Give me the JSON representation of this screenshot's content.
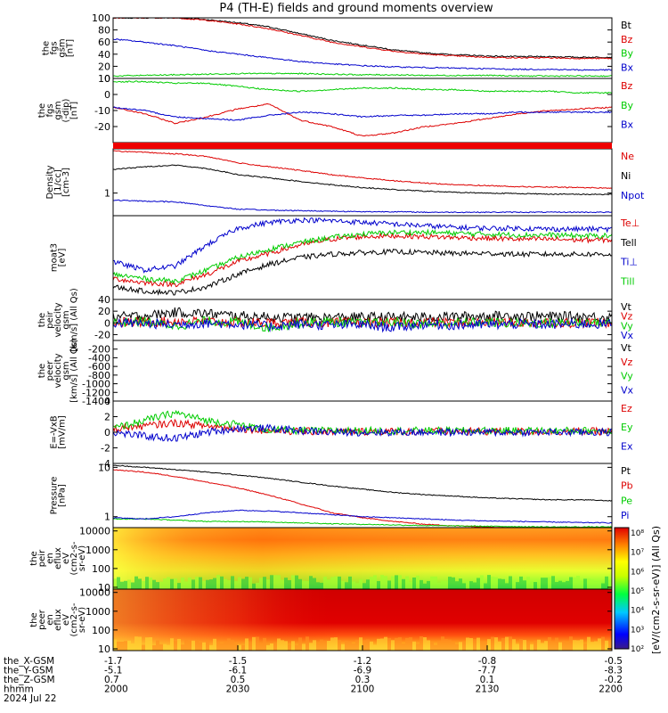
{
  "title": "P4 (TH-E) fields and ground moments overview",
  "colors": {
    "black": "#000000",
    "red": "#dd0000",
    "green": "#00cc00",
    "blue": "#0000cc"
  },
  "colorbar_labels": [
    "10⁸",
    "10⁷",
    "10⁶",
    "10⁵",
    "10⁴",
    "10³",
    "10²"
  ],
  "colorbar_title": "[eV/(cm2-s-sr-eV)] (All Qs)",
  "chart_data": [
    {
      "type": "line",
      "ylabel": [
        "the",
        "fgs",
        "gsm",
        "[nT]"
      ],
      "ylim": [
        0,
        100
      ],
      "yticks": [
        "100",
        "80",
        "60",
        "40",
        "20",
        "0"
      ],
      "series": [
        {
          "name": "Bt",
          "color": "black",
          "values": [
            100,
            100,
            100,
            97,
            92,
            85,
            74,
            63,
            55,
            47,
            42,
            39,
            37,
            36,
            36,
            35,
            35
          ]
        },
        {
          "name": "Bz",
          "color": "red",
          "values": [
            100,
            100,
            100,
            96,
            90,
            82,
            71,
            60,
            52,
            45,
            40,
            37,
            35,
            34,
            34,
            33,
            33
          ]
        },
        {
          "name": "By",
          "color": "green",
          "values": [
            4,
            5,
            6,
            7,
            8,
            8,
            8,
            7,
            6,
            6,
            5,
            5,
            5,
            4,
            4,
            4,
            4
          ]
        },
        {
          "name": "Bx",
          "color": "blue",
          "values": [
            65,
            60,
            54,
            46,
            40,
            34,
            28,
            24,
            21,
            19,
            18,
            17,
            16,
            15,
            15,
            14,
            14
          ]
        }
      ]
    },
    {
      "type": "line",
      "ylabel": [
        "the",
        "fgs",
        "gsm",
        "(-dip)",
        "[nT]"
      ],
      "ylim": [
        -30,
        10
      ],
      "yticks": [
        "10",
        "0",
        "-10",
        "-20"
      ],
      "series": [
        {
          "name": "Bz",
          "color": "red",
          "values": [
            -8,
            -12,
            -18,
            -14,
            -9,
            -6,
            -16,
            -20,
            -26,
            -24,
            -20,
            -18,
            -15,
            -12,
            -10,
            -9,
            -8
          ]
        },
        {
          "name": "By",
          "color": "green",
          "values": [
            8,
            8,
            7,
            7,
            5,
            3,
            2,
            3,
            4,
            4,
            3,
            3,
            2,
            2,
            2,
            1,
            1
          ]
        },
        {
          "name": "Bx",
          "color": "blue",
          "values": [
            -8,
            -10,
            -14,
            -15,
            -16,
            -13,
            -11,
            -12,
            -14,
            -13,
            -13,
            -12,
            -12,
            -11,
            -11,
            -11,
            -11
          ]
        }
      ]
    },
    {
      "type": "line",
      "ylabel": [
        "Density",
        "[1/cc]",
        "[cm-3]"
      ],
      "scale": "log",
      "ylim": [
        0.4,
        6
      ],
      "yticks": [
        "1"
      ],
      "series": [
        {
          "name": "Ne",
          "color": "red",
          "values": [
            5.5,
            5.2,
            4.9,
            4.4,
            3.4,
            2.9,
            2.5,
            2.1,
            1.85,
            1.65,
            1.5,
            1.4,
            1.35,
            1.3,
            1.27,
            1.25,
            1.22
          ]
        },
        {
          "name": "Ni",
          "color": "black",
          "values": [
            2.6,
            2.9,
            3.1,
            2.7,
            2.1,
            1.85,
            1.6,
            1.4,
            1.25,
            1.15,
            1.08,
            1.03,
            1.0,
            0.98,
            0.96,
            0.95,
            0.95
          ]
        },
        {
          "name": "Npot",
          "color": "blue",
          "values": [
            0.75,
            0.72,
            0.7,
            0.6,
            0.52,
            0.5,
            0.49,
            0.48,
            0.47,
            0.47,
            0.46,
            0.46,
            0.46,
            0.46,
            0.46,
            0.46,
            0.46
          ]
        }
      ]
    },
    {
      "type": "line",
      "ylabel": [
        "moat3",
        "[eV]"
      ],
      "ylim": [
        0,
        100
      ],
      "yticks": [],
      "series": [
        {
          "name": "Te⊥",
          "color": "red",
          "values": [
            25,
            20,
            18,
            30,
            45,
            55,
            65,
            72,
            75,
            76,
            75,
            74,
            73,
            72,
            72,
            71,
            71
          ]
        },
        {
          "name": "Tell",
          "color": "black",
          "values": [
            15,
            10,
            8,
            15,
            30,
            42,
            50,
            54,
            56,
            57,
            56,
            55,
            55,
            54,
            54,
            54,
            54
          ]
        },
        {
          "name": "Ti⊥",
          "color": "blue",
          "values": [
            45,
            35,
            40,
            65,
            85,
            92,
            95,
            94,
            92,
            90,
            88,
            86,
            85,
            85,
            84,
            84,
            84
          ]
        },
        {
          "name": "Till",
          "color": "green",
          "values": [
            30,
            25,
            22,
            35,
            50,
            60,
            68,
            74,
            78,
            80,
            80,
            79,
            78,
            77,
            77,
            76,
            76
          ]
        }
      ]
    },
    {
      "type": "line",
      "ylabel": [
        "the",
        "peir",
        "velocity",
        "gsm",
        "[km/s] (All Qs)"
      ],
      "ylim": [
        -30,
        40
      ],
      "yticks": [
        "40",
        "20",
        "0",
        "-20"
      ],
      "series": [
        {
          "name": "Vt",
          "color": "black",
          "values": [
            10,
            12,
            18,
            16,
            12,
            10,
            9,
            9,
            10,
            10,
            10,
            11,
            12,
            12,
            11,
            11,
            10
          ]
        },
        {
          "name": "Vz",
          "color": "red",
          "values": [
            2,
            1,
            3,
            2,
            1,
            0,
            1,
            0,
            1,
            0,
            1,
            0,
            1,
            0,
            1,
            0,
            0
          ]
        },
        {
          "name": "Vy",
          "color": "green",
          "values": [
            0,
            2,
            -5,
            3,
            1,
            -8,
            0,
            2,
            -1,
            1,
            -2,
            0,
            1,
            -1,
            0,
            1,
            0
          ]
        },
        {
          "name": "Vx",
          "color": "blue",
          "values": [
            0,
            -1,
            -3,
            0,
            -2,
            -6,
            -2,
            -4,
            -3,
            -8,
            -2,
            -4,
            -3,
            -2,
            -3,
            -2,
            -2
          ]
        }
      ]
    },
    {
      "type": "line",
      "ylabel": [
        "the",
        "peer",
        "velocity",
        "gsm",
        "[km/s] (All Qs)"
      ],
      "ylim": [
        -1400,
        0
      ],
      "yticks": [
        "-200",
        "-400",
        "-600",
        "-800",
        "-1000",
        "-1200",
        "-1400"
      ],
      "series": [
        {
          "name": "Vt",
          "color": "black",
          "values": []
        },
        {
          "name": "Vz",
          "color": "red",
          "values": []
        },
        {
          "name": "Vy",
          "color": "green",
          "values": []
        },
        {
          "name": "Vx",
          "color": "blue",
          "values": []
        }
      ]
    },
    {
      "type": "line",
      "ylabel": [
        "E=-VxB",
        "[mV/m]"
      ],
      "ylim": [
        -4,
        4
      ],
      "yticks": [
        "4",
        "2",
        "0",
        "-2",
        "-4"
      ],
      "series": [
        {
          "name": "Ez",
          "color": "red",
          "values": [
            0.5,
            0.8,
            1.2,
            0.8,
            0.5,
            0.2,
            0.1,
            0.1,
            0.1,
            0.1,
            0.1,
            0.1,
            0.1,
            0.1,
            0.1,
            0.1,
            0.1
          ]
        },
        {
          "name": "Ey",
          "color": "green",
          "values": [
            0.5,
            1.5,
            2.5,
            1.5,
            1,
            0.3,
            0.2,
            0.2,
            0.2,
            0.2,
            0.2,
            0.2,
            0.2,
            0.2,
            0.2,
            0.2,
            0.2
          ]
        },
        {
          "name": "Ex",
          "color": "blue",
          "values": [
            0,
            -0.5,
            -0.8,
            0,
            0.5,
            0.5,
            0.2,
            0,
            0,
            0,
            0,
            0,
            0,
            0,
            0,
            0,
            0
          ]
        }
      ]
    },
    {
      "type": "line",
      "ylabel": [
        "Pressure",
        "[nPa]"
      ],
      "scale": "log",
      "ylim": [
        0.6,
        12
      ],
      "yticks": [
        "10",
        "1"
      ],
      "series": [
        {
          "name": "Pt",
          "color": "black",
          "values": [
            11,
            10,
            9,
            8,
            7,
            6,
            5,
            4.2,
            3.6,
            3.1,
            2.8,
            2.6,
            2.4,
            2.3,
            2.2,
            2.2,
            2.1
          ]
        },
        {
          "name": "Pb",
          "color": "red",
          "values": [
            9,
            8,
            6.5,
            5,
            3.8,
            2.7,
            1.8,
            1.2,
            0.95,
            0.8,
            0.7,
            0.65,
            0.62,
            0.6,
            0.6,
            0.6,
            0.6
          ]
        },
        {
          "name": "Pe",
          "color": "green",
          "values": [
            0.9,
            0.9,
            0.85,
            0.8,
            0.8,
            0.78,
            0.75,
            0.72,
            0.7,
            0.68,
            0.66,
            0.65,
            0.64,
            0.63,
            0.62,
            0.62,
            0.62
          ]
        },
        {
          "name": "Pi",
          "color": "blue",
          "values": [
            0.95,
            0.9,
            1,
            1.2,
            1.35,
            1.3,
            1.2,
            1.1,
            1.0,
            0.95,
            0.9,
            0.85,
            0.82,
            0.8,
            0.78,
            0.76,
            0.75
          ]
        }
      ]
    },
    {
      "type": "heatmap",
      "ylabel": [
        "the",
        "peir",
        "en",
        "eflux",
        "eV",
        "(cm2-s-",
        "sr-eV)"
      ],
      "scale": "log",
      "ylim": [
        8,
        15000
      ],
      "yticks": [
        "10000",
        "1000",
        "100",
        "10"
      ]
    },
    {
      "type": "heatmap",
      "ylabel": [
        "the",
        "peer",
        "en",
        "eflux",
        "eV",
        "(cm2-s-",
        "sr-eV)"
      ],
      "scale": "log",
      "ylim": [
        8,
        15000
      ],
      "yticks": [
        "10000",
        "1000",
        "100",
        "10"
      ]
    }
  ],
  "x_axis": {
    "rows": [
      {
        "label": "the_X-GSM",
        "values": [
          "-1.7",
          "-1.5",
          "-1.2",
          "-0.8",
          "-0.5"
        ]
      },
      {
        "label": "the_Y-GSM",
        "values": [
          "-5.1",
          "-6.1",
          "-6.9",
          "-7.7",
          "-8.3"
        ]
      },
      {
        "label": "the_Z-GSM",
        "values": [
          "0.7",
          "0.5",
          "0.3",
          "0.1",
          "-0.2"
        ]
      },
      {
        "label": "hhmm",
        "values": [
          "2000",
          "2030",
          "2100",
          "2130",
          "2200"
        ]
      }
    ],
    "date": "2024 Jul 22"
  }
}
